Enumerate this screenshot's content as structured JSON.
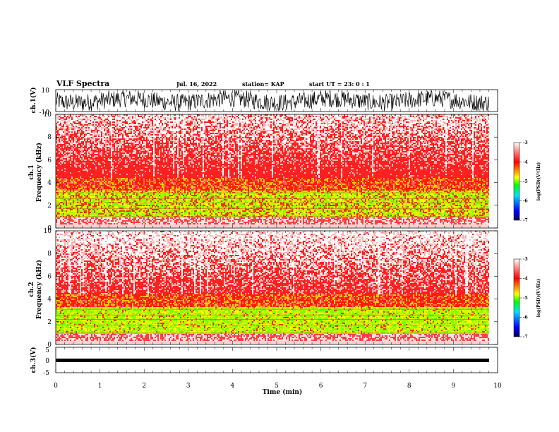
{
  "header": {
    "title": "VLF Spectra",
    "date": "Jul. 16, 2022",
    "station": "station= KAP",
    "start": "start UT =  23: 0  : 1"
  },
  "colors": {
    "low": "#000080",
    "mid_low": "#00c0ff",
    "mid": "#00ff00",
    "mid_high": "#ffff00",
    "high": "#ff0000",
    "top": "#ffffff"
  },
  "chart_data": [
    {
      "type": "line",
      "ylabel": "ch.1(V)",
      "ylim": [
        -10,
        10
      ],
      "yticks": [
        "10",
        "-10"
      ],
      "xlim": [
        0,
        10
      ]
    },
    {
      "type": "heatmap",
      "ylabel": "ch.1\nFrequency (kHz)",
      "ylim": [
        0,
        10
      ],
      "yticks": [
        "0",
        "2",
        "4",
        "6",
        "8",
        "10"
      ],
      "colorbar": {
        "label": "log(PSD)(V²/Hz)",
        "range": [
          -7,
          -3
        ],
        "ticks": [
          "-3",
          "-4",
          "-5",
          "-6",
          "-7"
        ]
      }
    },
    {
      "type": "heatmap",
      "ylabel": "ch.2\nFrequency (kHz)",
      "ylim": [
        0,
        10
      ],
      "yticks": [
        "0",
        "2",
        "4",
        "6",
        "8",
        "10"
      ],
      "colorbar": {
        "label": "log(PSD)(V²/Hz)",
        "range": [
          -7,
          -3
        ],
        "ticks": [
          "-3",
          "-4",
          "-5",
          "-6",
          "-7"
        ]
      }
    },
    {
      "type": "line",
      "ylabel": "ch.3(V)",
      "ylim": [
        -5,
        5
      ],
      "yticks": [
        "5",
        "0",
        "-5"
      ],
      "xlabel": "Time (min)",
      "xlim": [
        0,
        10
      ],
      "xticks": [
        "0",
        "1",
        "2",
        "3",
        "4",
        "5",
        "6",
        "7",
        "8",
        "9",
        "10"
      ]
    }
  ]
}
